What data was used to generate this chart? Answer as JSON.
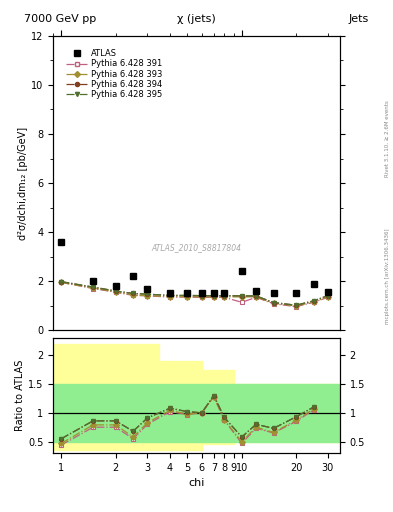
{
  "title_top_left": "7000 GeV pp",
  "title_top_right": "Jets",
  "plot_title": "χ (jets)",
  "ylabel_main": "d²σ/dchi,dm₁₂ [pb/GeV]",
  "ylabel_ratio": "Ratio to ATLAS",
  "xlabel": "chi",
  "watermark": "ATLAS_2010_S8817804",
  "right_label": "Rivet 3.1.10, ≥ 2.6M events",
  "right_label2": "mcplots.cern.ch [arXiv:1306.3436]",
  "atlas_x": [
    1.0,
    1.5,
    2.0,
    2.5,
    3.0,
    4.0,
    5.0,
    6.0,
    7.0,
    8.0,
    10.0,
    12.0,
    15.0,
    20.0,
    25.0,
    30.0
  ],
  "atlas_y": [
    3.6,
    2.0,
    1.8,
    2.2,
    1.7,
    1.5,
    1.5,
    1.5,
    1.5,
    1.5,
    2.4,
    1.6,
    1.5,
    1.5,
    1.9,
    1.55
  ],
  "p391_x": [
    1.0,
    1.5,
    2.0,
    2.5,
    3.0,
    4.0,
    5.0,
    6.0,
    7.0,
    8.0,
    10.0,
    12.0,
    15.0,
    20.0,
    25.0,
    30.0
  ],
  "p391_y": [
    1.95,
    1.7,
    1.55,
    1.42,
    1.4,
    1.35,
    1.35,
    1.34,
    1.34,
    1.34,
    1.14,
    1.34,
    1.08,
    0.96,
    1.14,
    1.34
  ],
  "p393_x": [
    1.0,
    1.5,
    2.0,
    2.5,
    3.0,
    4.0,
    5.0,
    6.0,
    7.0,
    8.0,
    10.0,
    12.0,
    15.0,
    20.0,
    25.0,
    30.0
  ],
  "p393_y": [
    1.95,
    1.72,
    1.56,
    1.44,
    1.41,
    1.37,
    1.37,
    1.36,
    1.36,
    1.36,
    1.36,
    1.36,
    1.1,
    0.99,
    1.15,
    1.36
  ],
  "p394_x": [
    1.0,
    1.5,
    2.0,
    2.5,
    3.0,
    4.0,
    5.0,
    6.0,
    7.0,
    8.0,
    10.0,
    12.0,
    15.0,
    20.0,
    25.0,
    30.0
  ],
  "p394_y": [
    1.98,
    1.76,
    1.6,
    1.5,
    1.47,
    1.42,
    1.42,
    1.41,
    1.41,
    1.41,
    1.4,
    1.4,
    1.13,
    1.02,
    1.2,
    1.41
  ],
  "p395_x": [
    1.0,
    1.5,
    2.0,
    2.5,
    3.0,
    4.0,
    5.0,
    6.0,
    7.0,
    8.0,
    10.0,
    12.0,
    15.0,
    20.0,
    25.0,
    30.0
  ],
  "p395_y": [
    1.98,
    1.76,
    1.6,
    1.5,
    1.47,
    1.42,
    1.42,
    1.41,
    1.41,
    1.41,
    1.4,
    1.4,
    1.13,
    1.02,
    1.2,
    1.41
  ],
  "ratio_391": [
    0.44,
    0.75,
    0.75,
    0.55,
    0.8,
    1.02,
    0.97,
    1.0,
    1.28,
    0.87,
    0.47,
    0.73,
    0.65,
    0.85,
    1.05
  ],
  "ratio_393": [
    0.47,
    0.79,
    0.79,
    0.58,
    0.83,
    1.04,
    0.98,
    1.0,
    1.28,
    0.88,
    0.5,
    0.75,
    0.66,
    0.87,
    1.07
  ],
  "ratio_394": [
    0.55,
    0.86,
    0.86,
    0.68,
    0.91,
    1.08,
    1.02,
    1.0,
    1.3,
    0.92,
    0.58,
    0.8,
    0.73,
    0.93,
    1.1
  ],
  "ratio_395": [
    0.55,
    0.86,
    0.86,
    0.68,
    0.91,
    1.08,
    1.02,
    1.0,
    1.3,
    0.92,
    0.58,
    0.8,
    0.73,
    0.93,
    1.1
  ],
  "ratio_x": [
    1.0,
    1.5,
    2.0,
    2.5,
    3.0,
    4.0,
    5.0,
    6.0,
    7.0,
    8.0,
    10.0,
    12.0,
    15.0,
    20.0,
    25.0
  ],
  "band_yellow_x_edges": [
    0.9,
    2.0,
    3.5,
    6.0,
    9.0,
    35.0
  ],
  "band_yellow_hi": [
    2.2,
    2.2,
    1.9,
    1.75,
    1.5,
    1.5
  ],
  "band_yellow_lo": [
    0.35,
    0.35,
    0.35,
    0.45,
    0.5,
    0.5
  ],
  "band_green_x_edges": [
    0.9,
    2.0,
    3.5,
    6.0,
    9.0,
    35.0
  ],
  "band_green_hi": [
    1.5,
    1.5,
    1.5,
    1.5,
    1.5,
    1.5
  ],
  "band_green_lo": [
    0.5,
    0.5,
    0.5,
    0.5,
    0.5,
    0.5
  ],
  "color_391": "#c06080",
  "color_393": "#a09030",
  "color_394": "#804020",
  "color_395": "#507030",
  "marker_391": "s",
  "marker_393": "D",
  "marker_394": "o",
  "marker_395": "v",
  "ylim_main": [
    0,
    12
  ],
  "ylim_ratio": [
    0.3,
    2.3
  ],
  "xlim": [
    0.9,
    35.0
  ]
}
